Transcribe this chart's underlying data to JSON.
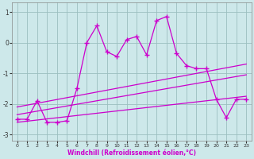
{
  "xlabel": "Windchill (Refroidissement éolien,°C)",
  "hours": [
    0,
    1,
    2,
    3,
    4,
    5,
    6,
    7,
    8,
    9,
    10,
    11,
    12,
    13,
    14,
    15,
    16,
    17,
    18,
    19,
    20,
    21,
    22,
    23
  ],
  "main_line": [
    -2.5,
    -2.5,
    -1.9,
    -2.6,
    -2.6,
    -2.55,
    -1.5,
    0.0,
    0.55,
    -0.3,
    -0.45,
    0.1,
    0.2,
    -0.4,
    0.72,
    0.85,
    -0.35,
    -0.75,
    -0.85,
    -0.85,
    -1.85,
    -2.45,
    -1.85,
    -1.85
  ],
  "upper_line_x": [
    0,
    23
  ],
  "upper_line_y": [
    -2.1,
    -0.7
  ],
  "mid_line_x": [
    0,
    23
  ],
  "mid_line_y": [
    -2.35,
    -1.05
  ],
  "lower_line_x": [
    0,
    23
  ],
  "lower_line_y": [
    -2.6,
    -1.75
  ],
  "line_color": "#cc00cc",
  "bg_color": "#cde8ea",
  "grid_color": "#9bbfbf",
  "ylim": [
    -3.2,
    1.3
  ],
  "xlim": [
    -0.5,
    23.5
  ],
  "yticks": [
    -3,
    -2,
    -1,
    0,
    1
  ],
  "xticks": [
    0,
    1,
    2,
    3,
    4,
    5,
    6,
    7,
    8,
    9,
    10,
    11,
    12,
    13,
    14,
    15,
    16,
    17,
    18,
    19,
    20,
    21,
    22,
    23
  ]
}
